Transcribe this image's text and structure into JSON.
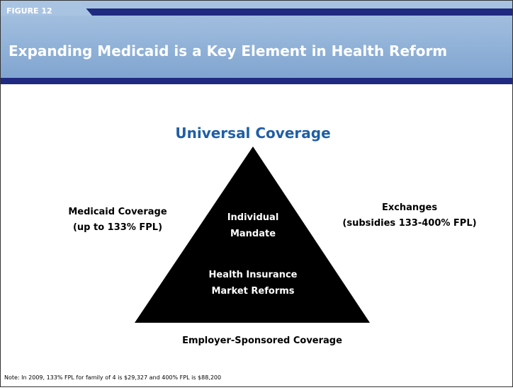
{
  "header": {
    "figure_label": "FIGURE 12",
    "title": "Expanding Medicaid is a Key Element in Health Reform"
  },
  "diagram": {
    "apex_label": "Universal Coverage",
    "left_label": [
      "Medicaid Coverage",
      "(up to 133% FPL)"
    ],
    "right_label": [
      "Exchanges",
      "(subsidies 133-400% FPL)"
    ],
    "inner_top": [
      "Individual",
      "Mandate"
    ],
    "inner_bottom": [
      "Health Insurance",
      "Market Reforms"
    ],
    "base_label": "Employer-Sponsored Coverage"
  },
  "note": "Note: In 2009, 133% FPL for family of 4 is $29,327 and 400% FPL is $88,200"
}
